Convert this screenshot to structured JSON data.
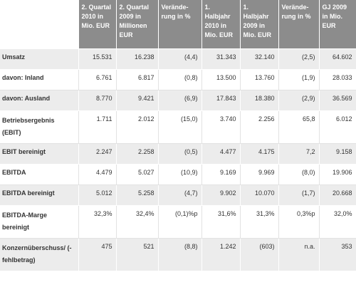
{
  "table": {
    "columns": [
      "",
      "2. Quartal 2010 in Mio. EUR",
      "2. Quartal 2009 in Millionen EUR",
      "Verände-rung in %",
      "1. Halbjahr 2010 in Mio. EUR",
      "1. Halbjahr 2009 in Mio. EUR",
      "Verände-rung in %",
      "GJ 2009 in Mio. EUR"
    ],
    "rows": [
      {
        "label": "Umsatz",
        "values": [
          "15.531",
          "16.238",
          "(4,4)",
          "31.343",
          "32.140",
          "(2,5)",
          "64.602"
        ]
      },
      {
        "label": "davon: Inland",
        "values": [
          "6.761",
          "6.817",
          "(0,8)",
          "13.500",
          "13.760",
          "(1,9)",
          "28.033"
        ]
      },
      {
        "label": "davon: Ausland",
        "values": [
          "8.770",
          "9.421",
          "(6,9)",
          "17.843",
          "18.380",
          "(2,9)",
          "36.569"
        ]
      },
      {
        "label": "Betriebsergebnis (EBIT)",
        "values": [
          "1.711",
          "2.012",
          "(15,0)",
          "3.740",
          "2.256",
          "65,8",
          "6.012"
        ]
      },
      {
        "label": "EBIT bereinigt",
        "values": [
          "2.247",
          "2.258",
          "(0,5)",
          "4.477",
          "4.175",
          "7,2",
          "9.158"
        ]
      },
      {
        "label": "EBITDA",
        "values": [
          "4.479",
          "5.027",
          "(10,9)",
          "9.169",
          "9.969",
          "(8,0)",
          "19.906"
        ]
      },
      {
        "label": "EBITDA bereinigt",
        "values": [
          "5.012",
          "5.258",
          "(4,7)",
          "9.902",
          "10.070",
          "(1,7)",
          "20.668"
        ]
      },
      {
        "label": "EBITDA-Marge bereinigt",
        "values": [
          "32,3%",
          "32,4%",
          "(0,1)%p",
          "31,6%",
          "31,3%",
          "0,3%p",
          "32,0%"
        ]
      },
      {
        "label": "Konzernüberschuss/ (-fehlbetrag)",
        "values": [
          "475",
          "521",
          "(8,8)",
          "1.242",
          "(603)",
          "n.a.",
          "353"
        ]
      }
    ]
  }
}
